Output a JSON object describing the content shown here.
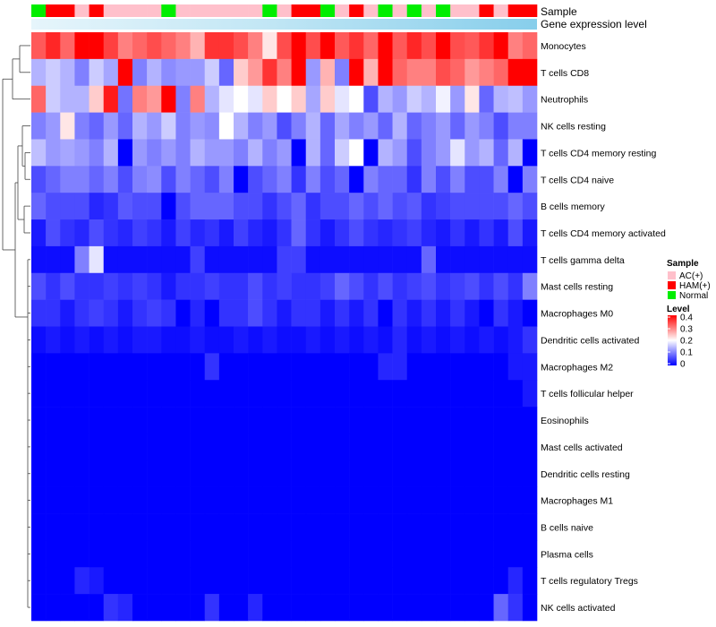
{
  "chart_data": {
    "type": "heatmap",
    "title": "",
    "annotation_rows": [
      "Sample",
      "Gene expression level"
    ],
    "rows": [
      "Monocytes",
      "T cells CD8",
      "Neutrophils",
      "NK cells resting",
      "T cells CD4 memory resting",
      "T cells CD4 naive",
      "B cells memory",
      "T cells CD4 memory activated",
      "T cells gamma delta",
      "Mast cells resting",
      "Macrophages M0",
      "Dendritic cells activated",
      "Macrophages M2",
      "T cells follicular helper",
      "Eosinophils",
      "Mast cells activated",
      "Dendritic cells resting",
      "Macrophages M1",
      "B cells naive",
      "Plasma cells",
      "T cells regulatory  Tregs",
      "NK cells activated"
    ],
    "samples": [
      "Normal",
      "HAM(+)",
      "HAM(+)",
      "AC(+)",
      "HAM(+)",
      "AC(+)",
      "AC(+)",
      "AC(+)",
      "AC(+)",
      "Normal",
      "AC(+)",
      "AC(+)",
      "AC(+)",
      "AC(+)",
      "AC(+)",
      "AC(+)",
      "Normal",
      "AC(+)",
      "HAM(+)",
      "HAM(+)",
      "Normal",
      "AC(+)",
      "HAM(+)",
      "AC(+)",
      "Normal",
      "AC(+)",
      "Normal",
      "AC(+)",
      "Normal",
      "AC(+)",
      "AC(+)",
      "HAM(+)",
      "AC(+)",
      "HAM(+)",
      "HAM(+)"
    ],
    "values": [
      [
        0.33,
        0.37,
        0.32,
        0.4,
        0.4,
        0.35,
        0.3,
        0.32,
        0.34,
        0.32,
        0.3,
        0.26,
        0.36,
        0.36,
        0.34,
        0.3,
        0.22,
        0.34,
        0.4,
        0.34,
        0.4,
        0.33,
        0.36,
        0.32,
        0.4,
        0.33,
        0.37,
        0.34,
        0.4,
        0.34,
        0.33,
        0.36,
        0.4,
        0.3,
        0.32
      ],
      [
        0.14,
        0.16,
        0.14,
        0.1,
        0.16,
        0.13,
        0.4,
        0.1,
        0.14,
        0.11,
        0.12,
        0.12,
        0.16,
        0.08,
        0.24,
        0.28,
        0.36,
        0.3,
        0.4,
        0.12,
        0.26,
        0.1,
        0.4,
        0.26,
        0.4,
        0.32,
        0.3,
        0.3,
        0.34,
        0.32,
        0.28,
        0.3,
        0.32,
        0.4,
        0.4
      ],
      [
        0.32,
        0.16,
        0.14,
        0.14,
        0.24,
        0.38,
        0.09,
        0.3,
        0.28,
        0.4,
        0.1,
        0.3,
        0.14,
        0.18,
        0.2,
        0.18,
        0.24,
        0.2,
        0.24,
        0.13,
        0.24,
        0.18,
        0.2,
        0.06,
        0.14,
        0.12,
        0.16,
        0.14,
        0.19,
        0.12,
        0.22,
        0.08,
        0.14,
        0.15,
        0.12
      ],
      [
        0.1,
        0.12,
        0.22,
        0.1,
        0.08,
        0.12,
        0.08,
        0.14,
        0.12,
        0.16,
        0.1,
        0.12,
        0.11,
        0.2,
        0.14,
        0.1,
        0.12,
        0.06,
        0.1,
        0.14,
        0.08,
        0.13,
        0.1,
        0.12,
        0.08,
        0.14,
        0.08,
        0.1,
        0.12,
        0.08,
        0.12,
        0.1,
        0.06,
        0.1,
        0.1
      ],
      [
        0.15,
        0.12,
        0.13,
        0.12,
        0.1,
        0.14,
        0.0,
        0.12,
        0.1,
        0.12,
        0.1,
        0.14,
        0.12,
        0.12,
        0.1,
        0.14,
        0.1,
        0.12,
        0.0,
        0.14,
        0.08,
        0.16,
        0.2,
        0.0,
        0.14,
        0.12,
        0.06,
        0.1,
        0.12,
        0.18,
        0.12,
        0.14,
        0.08,
        0.14,
        0.0
      ],
      [
        0.06,
        0.08,
        0.1,
        0.1,
        0.08,
        0.1,
        0.06,
        0.1,
        0.11,
        0.06,
        0.1,
        0.08,
        0.06,
        0.1,
        0.0,
        0.06,
        0.08,
        0.1,
        0.04,
        0.1,
        0.06,
        0.08,
        0.0,
        0.1,
        0.08,
        0.08,
        0.04,
        0.1,
        0.06,
        0.1,
        0.06,
        0.06,
        0.1,
        0.0,
        0.1
      ],
      [
        0.08,
        0.06,
        0.06,
        0.06,
        0.03,
        0.04,
        0.07,
        0.06,
        0.06,
        0.0,
        0.06,
        0.08,
        0.08,
        0.08,
        0.06,
        0.06,
        0.04,
        0.06,
        0.08,
        0.04,
        0.06,
        0.06,
        0.08,
        0.06,
        0.08,
        0.06,
        0.07,
        0.04,
        0.05,
        0.06,
        0.06,
        0.06,
        0.06,
        0.08,
        0.06
      ],
      [
        0.02,
        0.06,
        0.04,
        0.03,
        0.06,
        0.04,
        0.03,
        0.05,
        0.04,
        0.02,
        0.05,
        0.03,
        0.04,
        0.02,
        0.05,
        0.03,
        0.02,
        0.04,
        0.08,
        0.04,
        0.02,
        0.04,
        0.06,
        0.04,
        0.03,
        0.04,
        0.05,
        0.03,
        0.02,
        0.04,
        0.02,
        0.04,
        0.02,
        0.06,
        0.02
      ],
      [
        0.01,
        0.01,
        0.01,
        0.1,
        0.18,
        0.01,
        0.01,
        0.01,
        0.01,
        0.01,
        0.01,
        0.05,
        0.01,
        0.01,
        0.01,
        0.01,
        0.01,
        0.05,
        0.05,
        0.01,
        0.01,
        0.01,
        0.01,
        0.01,
        0.01,
        0.01,
        0.01,
        0.08,
        0.01,
        0.01,
        0.01,
        0.01,
        0.01,
        0.01,
        0.01
      ],
      [
        0.06,
        0.04,
        0.06,
        0.04,
        0.04,
        0.05,
        0.04,
        0.05,
        0.04,
        0.02,
        0.04,
        0.04,
        0.05,
        0.04,
        0.04,
        0.06,
        0.04,
        0.05,
        0.04,
        0.04,
        0.05,
        0.08,
        0.06,
        0.04,
        0.06,
        0.04,
        0.05,
        0.06,
        0.04,
        0.05,
        0.06,
        0.04,
        0.06,
        0.04,
        0.1
      ],
      [
        0.04,
        0.04,
        0.02,
        0.04,
        0.05,
        0.04,
        0.02,
        0.04,
        0.05,
        0.04,
        0.0,
        0.03,
        0.0,
        0.04,
        0.04,
        0.06,
        0.04,
        0.02,
        0.04,
        0.04,
        0.02,
        0.04,
        0.02,
        0.04,
        0.0,
        0.04,
        0.02,
        0.04,
        0.02,
        0.04,
        0.02,
        0.0,
        0.04,
        0.02,
        0.0
      ],
      [
        0.01,
        0.02,
        0.01,
        0.02,
        0.01,
        0.02,
        0.01,
        0.02,
        0.02,
        0.01,
        0.01,
        0.02,
        0.01,
        0.01,
        0.02,
        0.01,
        0.02,
        0.01,
        0.01,
        0.02,
        0.01,
        0.02,
        0.01,
        0.02,
        0.01,
        0.03,
        0.01,
        0.02,
        0.01,
        0.02,
        0.01,
        0.02,
        0.01,
        0.02,
        0.04
      ],
      [
        0.0,
        0.0,
        0.0,
        0.0,
        0.0,
        0.0,
        0.0,
        0.0,
        0.0,
        0.0,
        0.0,
        0.0,
        0.04,
        0.0,
        0.0,
        0.0,
        0.0,
        0.0,
        0.0,
        0.0,
        0.0,
        0.0,
        0.0,
        0.0,
        0.03,
        0.03,
        0.0,
        0.0,
        0.0,
        0.0,
        0.0,
        0.0,
        0.0,
        0.02,
        0.02
      ],
      [
        0.0,
        0.0,
        0.0,
        0.0,
        0.0,
        0.0,
        0.0,
        0.0,
        0.0,
        0.0,
        0.0,
        0.0,
        0.0,
        0.0,
        0.0,
        0.0,
        0.0,
        0.0,
        0.0,
        0.0,
        0.0,
        0.0,
        0.0,
        0.0,
        0.0,
        0.0,
        0.0,
        0.0,
        0.0,
        0.0,
        0.0,
        0.0,
        0.0,
        0.0,
        0.02
      ],
      [
        0.0,
        0.0,
        0.0,
        0.0,
        0.0,
        0.0,
        0.0,
        0.0,
        0.0,
        0.0,
        0.0,
        0.0,
        0.0,
        0.0,
        0.0,
        0.0,
        0.0,
        0.0,
        0.0,
        0.0,
        0.0,
        0.0,
        0.0,
        0.0,
        0.0,
        0.0,
        0.0,
        0.0,
        0.0,
        0.0,
        0.0,
        0.0,
        0.0,
        0.0,
        0.0
      ],
      [
        0.0,
        0.0,
        0.0,
        0.0,
        0.0,
        0.0,
        0.0,
        0.0,
        0.0,
        0.0,
        0.0,
        0.0,
        0.0,
        0.0,
        0.0,
        0.0,
        0.0,
        0.0,
        0.0,
        0.0,
        0.0,
        0.0,
        0.0,
        0.0,
        0.0,
        0.0,
        0.0,
        0.0,
        0.0,
        0.0,
        0.0,
        0.0,
        0.0,
        0.0,
        0.0
      ],
      [
        0.0,
        0.0,
        0.0,
        0.0,
        0.0,
        0.0,
        0.0,
        0.0,
        0.0,
        0.0,
        0.0,
        0.0,
        0.0,
        0.0,
        0.0,
        0.0,
        0.0,
        0.0,
        0.0,
        0.0,
        0.0,
        0.0,
        0.0,
        0.0,
        0.0,
        0.0,
        0.0,
        0.0,
        0.0,
        0.0,
        0.0,
        0.0,
        0.0,
        0.0,
        0.0
      ],
      [
        0.0,
        0.0,
        0.0,
        0.0,
        0.0,
        0.0,
        0.0,
        0.0,
        0.0,
        0.0,
        0.0,
        0.0,
        0.0,
        0.0,
        0.0,
        0.0,
        0.0,
        0.0,
        0.0,
        0.0,
        0.0,
        0.0,
        0.0,
        0.0,
        0.0,
        0.0,
        0.0,
        0.0,
        0.0,
        0.0,
        0.0,
        0.0,
        0.0,
        0.0,
        0.0
      ],
      [
        0.0,
        0.0,
        0.0,
        0.0,
        0.0,
        0.0,
        0.0,
        0.0,
        0.0,
        0.0,
        0.0,
        0.0,
        0.0,
        0.0,
        0.0,
        0.0,
        0.0,
        0.0,
        0.0,
        0.0,
        0.0,
        0.0,
        0.0,
        0.0,
        0.0,
        0.0,
        0.0,
        0.0,
        0.0,
        0.0,
        0.0,
        0.0,
        0.0,
        0.0,
        0.0
      ],
      [
        0.0,
        0.0,
        0.0,
        0.0,
        0.0,
        0.0,
        0.0,
        0.0,
        0.0,
        0.0,
        0.0,
        0.0,
        0.0,
        0.0,
        0.0,
        0.0,
        0.0,
        0.0,
        0.0,
        0.0,
        0.0,
        0.0,
        0.0,
        0.0,
        0.0,
        0.0,
        0.0,
        0.0,
        0.0,
        0.0,
        0.0,
        0.0,
        0.0,
        0.0,
        0.0
      ],
      [
        0.0,
        0.0,
        0.0,
        0.03,
        0.02,
        0.0,
        0.0,
        0.0,
        0.0,
        0.0,
        0.0,
        0.0,
        0.0,
        0.0,
        0.0,
        0.0,
        0.0,
        0.0,
        0.0,
        0.0,
        0.0,
        0.0,
        0.0,
        0.0,
        0.0,
        0.0,
        0.0,
        0.0,
        0.0,
        0.0,
        0.0,
        0.0,
        0.0,
        0.03,
        0.0
      ],
      [
        0.0,
        0.0,
        0.0,
        0.0,
        0.0,
        0.04,
        0.03,
        0.0,
        0.0,
        0.0,
        0.0,
        0.0,
        0.04,
        0.0,
        0.0,
        0.03,
        0.0,
        0.0,
        0.0,
        0.0,
        0.0,
        0.0,
        0.0,
        0.0,
        0.0,
        0.0,
        0.0,
        0.0,
        0.0,
        0.0,
        0.0,
        0.0,
        0.08,
        0.04,
        0.0
      ]
    ],
    "color_scale": {
      "min": 0,
      "max": 0.4,
      "low": "#0000ff",
      "mid": "#ffffff",
      "high": "#ff0000"
    },
    "legend": {
      "sample_title": "Sample",
      "sample_items": [
        {
          "label": "AC(+)",
          "color": "#ffc0cb"
        },
        {
          "label": "HAM(+)",
          "color": "#ff0000"
        },
        {
          "label": "Normal",
          "color": "#00ee00"
        }
      ],
      "level_title": "Level",
      "level_ticks": [
        "0.4",
        "0.3",
        "0.2",
        "0.1",
        "0"
      ],
      "position": "right"
    },
    "expression_bar_color": "#87ceeb",
    "dendrogram_side": "left"
  }
}
